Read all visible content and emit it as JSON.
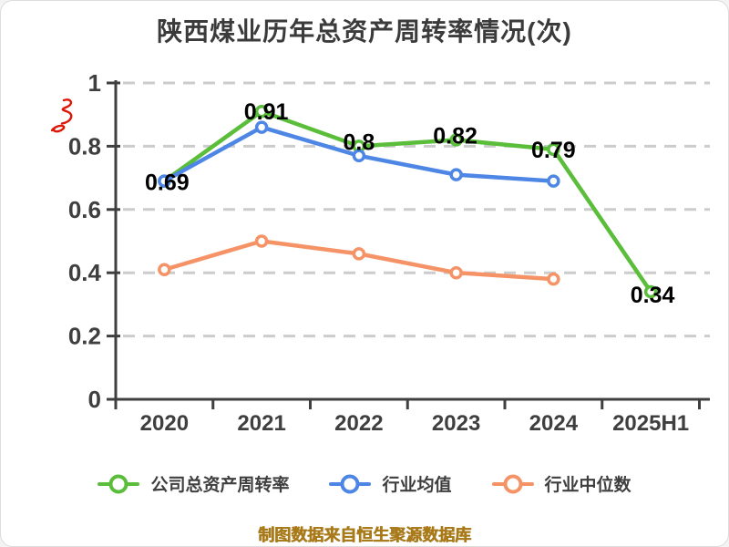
{
  "title": "陕西煤业历年总资产周转率情况(次)",
  "source_note": "制图数据来自恒生聚源数据库",
  "watermark_name": "red-scribble-logo",
  "colors": {
    "company": "#5bbe3b",
    "industry_avg": "#4d86e4",
    "industry_median": "#f59367",
    "grid": "#cccccc",
    "axis": "#3f3f3f",
    "tick_label": "#3f3f3f",
    "value_label": "#000000",
    "title": "#3b3b3b",
    "source_note": "#a87a1a",
    "watermark": "#dd1606",
    "marker_fill": "#ffffff",
    "background": "#ffffff"
  },
  "legend": {
    "items": [
      {
        "label": "公司总资产周转率",
        "color_key": "company"
      },
      {
        "label": "行业均值",
        "color_key": "industry_avg"
      },
      {
        "label": "行业中位数",
        "color_key": "industry_median"
      }
    ]
  },
  "chart_data": {
    "type": "line",
    "title": "陕西煤业历年总资产周转率情况(次)",
    "categories": [
      "2020",
      "2021",
      "2022",
      "2023",
      "2024",
      "2025H1"
    ],
    "series": [
      {
        "name": "公司总资产周转率",
        "color_key": "company",
        "values": [
          0.69,
          0.91,
          0.8,
          0.82,
          0.79,
          0.34
        ],
        "point_labels": [
          "0.69",
          "0.91",
          "0.8",
          "0.82",
          "0.79",
          "0.34"
        ]
      },
      {
        "name": "行业均值",
        "color_key": "industry_avg",
        "values": [
          0.69,
          0.86,
          0.77,
          0.71,
          0.69,
          null
        ]
      },
      {
        "name": "行业中位数",
        "color_key": "industry_median",
        "values": [
          0.41,
          0.5,
          0.46,
          0.4,
          0.38,
          null
        ]
      }
    ],
    "xlabel": "",
    "ylabel": "",
    "ylim": [
      0,
      1
    ],
    "yticks": [
      0,
      0.2,
      0.4,
      0.6,
      0.8,
      1
    ],
    "ytick_labels": [
      "0",
      "0.2",
      "0.4",
      "0.6",
      "0.8",
      "1"
    ],
    "grid": true,
    "grid_style": "dashed",
    "legend_position": "bottom"
  }
}
